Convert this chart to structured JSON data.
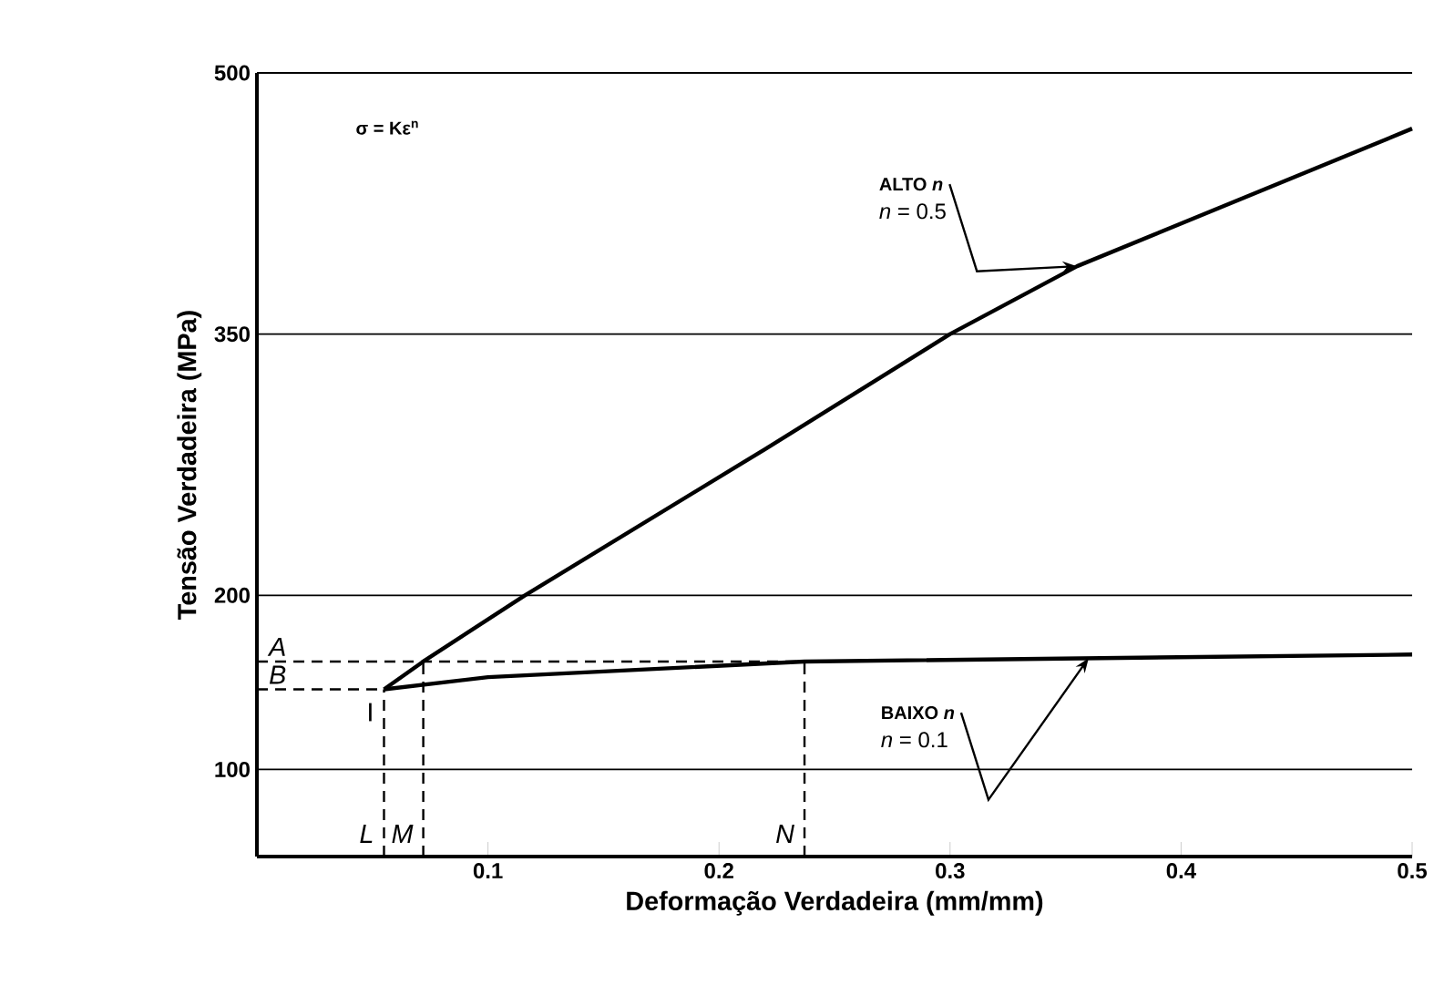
{
  "chart_data": {
    "type": "line",
    "xlabel": "Deformação Verdadeira (mm/mm)",
    "ylabel": "Tensão Verdadeira (MPa)",
    "x": [
      0.055,
      0.072,
      0.116,
      0.22,
      0.3,
      0.355,
      0.5
    ],
    "series": [
      {
        "color": "#000000",
        "line_style": "solid",
        "values": [
          146,
          162,
          200,
          284,
          350,
          389,
          468
        ]
      },
      {
        "color": "#000000",
        "line_style": "solid",
        "x": [
          0.055,
          0.1,
          0.237,
          0.5
        ],
        "values": [
          146,
          153,
          162,
          166
        ]
      },
      {
        "color": "#000000",
        "line_style": "dashed",
        "x": [
          0,
          0.237
        ],
        "values": [
          162,
          162
        ]
      },
      {
        "color": "#000000",
        "line_style": "dashed",
        "x": [
          0,
          0.055
        ],
        "values": [
          146,
          146
        ]
      },
      {
        "color": "#000000",
        "line_style": "dashed",
        "x": [
          0.055,
          0.055
        ],
        "values": [
          50,
          146
        ]
      },
      {
        "color": "#000000",
        "line_style": "dashed",
        "x": [
          0.072,
          0.072
        ],
        "values": [
          50,
          162
        ]
      },
      {
        "color": "#000000",
        "line_style": "dashed",
        "x": [
          0.237,
          0.237
        ],
        "values": [
          50,
          162
        ]
      }
    ],
    "xlim": [
      0,
      0.5
    ],
    "ylim": [
      50,
      500
    ],
    "xticks": [
      0.1,
      0.2,
      0.3,
      0.4,
      0.5
    ],
    "yticks": [
      100,
      200,
      350,
      500
    ],
    "grid": "y",
    "marker": "none",
    "annotations": [
      "σ = Kε$^{n}$",
      {
        "text": "ALTO *n*",
        "x": 0.355,
        "y": 389
      },
      "*n* = 0.5",
      {
        "text": "BAIXO *n*",
        "x": 0.36,
        "y": 164
      },
      "*n* = 0.1",
      {
        "text": "A",
        "x": 0,
        "y": 162
      },
      {
        "text": "B",
        "x": 0,
        "y": 146
      },
      {
        "text": "I",
        "x": 0.055,
        "y": 146
      },
      {
        "text": "L",
        "x": 0.055,
        "y": 50
      },
      {
        "text": "M",
        "x": 0.072,
        "y": 50
      },
      {
        "text": "N",
        "x": 0.237,
        "y": 50
      }
    ]
  }
}
